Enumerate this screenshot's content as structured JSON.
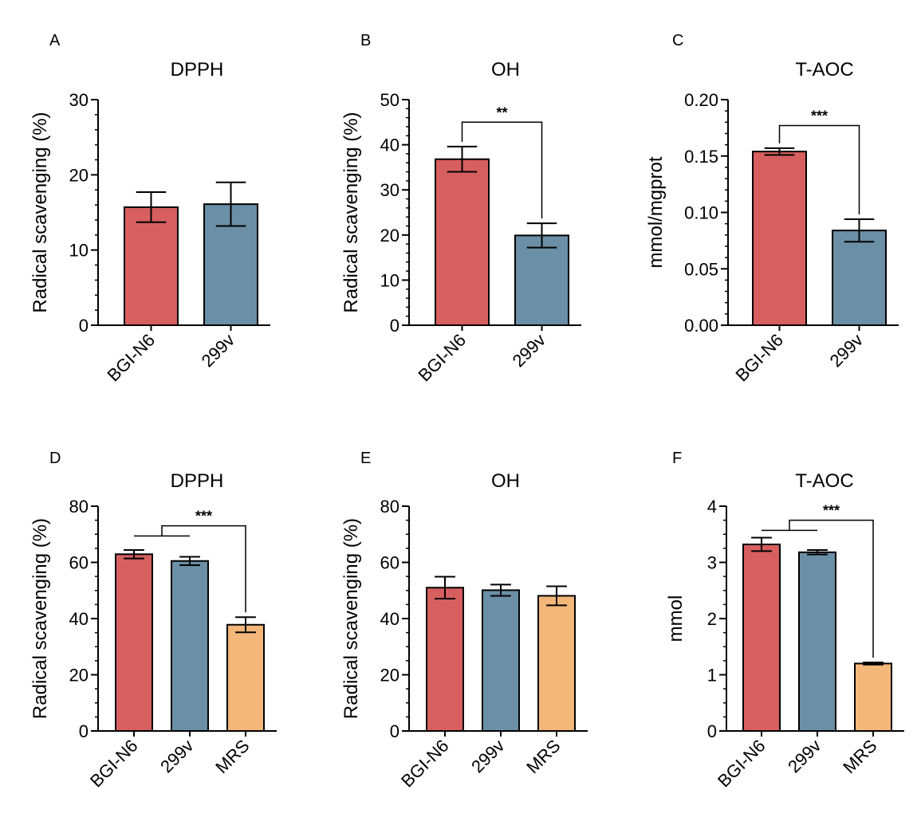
{
  "colors": {
    "BGI-N6": "#d75f5f",
    "299v": "#6b8fa6",
    "MRS": "#f2b779",
    "axis": "#000000"
  },
  "chart_data": [
    {
      "panel": "A",
      "type": "bar",
      "title": "DPPH",
      "ylabel": "Radical scavenging (%)",
      "categories": [
        "BGI-N6",
        "299v"
      ],
      "values": [
        15.7,
        16.1
      ],
      "errors": [
        2.0,
        2.9
      ],
      "ylim": [
        0,
        30
      ],
      "yticks": [
        "0",
        "10",
        "20",
        "30"
      ],
      "ytick_values": [
        0,
        10,
        20,
        30
      ],
      "minor_step": 2,
      "significance": []
    },
    {
      "panel": "B",
      "type": "bar",
      "title": "OH",
      "ylabel": "Radical scavenging (%)",
      "categories": [
        "BGI-N6",
        "299v"
      ],
      "values": [
        36.8,
        19.9
      ],
      "errors": [
        2.8,
        2.7
      ],
      "ylim": [
        0,
        50
      ],
      "yticks": [
        "0",
        "10",
        "20",
        "30",
        "40",
        "50"
      ],
      "ytick_values": [
        0,
        10,
        20,
        30,
        40,
        50
      ],
      "minor_step": 2,
      "significance": [
        {
          "label": "**",
          "from": [
            0
          ],
          "to": 1,
          "y": 45
        }
      ]
    },
    {
      "panel": "C",
      "type": "bar",
      "title": "T-AOC",
      "ylabel": "mmol/mgprot",
      "categories": [
        "BGI-N6",
        "299v"
      ],
      "values": [
        0.154,
        0.084
      ],
      "errors": [
        0.003,
        0.01
      ],
      "ylim": [
        0,
        0.2
      ],
      "yticks": [
        "0.00",
        "0.05",
        "0.10",
        "0.15",
        "0.20"
      ],
      "ytick_values": [
        0,
        0.05,
        0.1,
        0.15,
        0.2
      ],
      "minor_step": 0.01,
      "significance": [
        {
          "label": "***",
          "from": [
            0
          ],
          "to": 1,
          "y": 0.177
        }
      ]
    },
    {
      "panel": "D",
      "type": "bar",
      "title": "DPPH",
      "ylabel": "Radical scavenging (%)",
      "categories": [
        "BGI-N6",
        "299v",
        "MRS"
      ],
      "values": [
        62.9,
        60.5,
        37.8
      ],
      "errors": [
        1.5,
        1.5,
        2.7
      ],
      "ylim": [
        0,
        80
      ],
      "yticks": [
        "0",
        "20",
        "40",
        "60",
        "80"
      ],
      "ytick_values": [
        0,
        20,
        40,
        60,
        80
      ],
      "minor_step": 5,
      "significance": [
        {
          "label": "***",
          "from": [
            0,
            1
          ],
          "to": 2,
          "y": 73
        }
      ]
    },
    {
      "panel": "E",
      "type": "bar",
      "title": "OH",
      "ylabel": "Radical scavenging (%)",
      "categories": [
        "BGI-N6",
        "299v",
        "MRS"
      ],
      "values": [
        51.0,
        50.1,
        48.1
      ],
      "errors": [
        3.9,
        2.0,
        3.4
      ],
      "ylim": [
        0,
        80
      ],
      "yticks": [
        "0",
        "20",
        "40",
        "60",
        "80"
      ],
      "ytick_values": [
        0,
        20,
        40,
        60,
        80
      ],
      "minor_step": 5,
      "significance": []
    },
    {
      "panel": "F",
      "type": "bar",
      "title": "T-AOC",
      "ylabel": "mmol",
      "categories": [
        "BGI-N6",
        "299v",
        "MRS"
      ],
      "values": [
        3.32,
        3.18,
        1.2
      ],
      "errors": [
        0.12,
        0.04,
        0.02
      ],
      "ylim": [
        0,
        4
      ],
      "yticks": [
        "0",
        "1",
        "2",
        "3",
        "4"
      ],
      "ytick_values": [
        0,
        1,
        2,
        3,
        4
      ],
      "minor_step": 0.25,
      "significance": [
        {
          "label": "***",
          "from": [
            0,
            1
          ],
          "to": 2,
          "y": 3.75
        }
      ]
    }
  ]
}
